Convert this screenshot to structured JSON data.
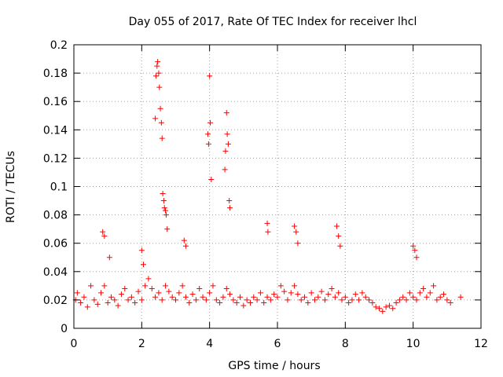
{
  "chart_data": {
    "type": "scatter",
    "title": "Day 055 of 2017, Rate Of TEC Index for receiver lhcl",
    "xlabel": "GPS time / hours",
    "ylabel": "ROTI / TECUs",
    "xlim": [
      0,
      12
    ],
    "ylim": [
      0,
      0.2
    ],
    "xticks": [
      0,
      2,
      4,
      6,
      8,
      10,
      12
    ],
    "yticks": [
      0,
      0.02,
      0.04,
      0.06,
      0.08,
      0.1,
      0.12,
      0.14,
      0.16,
      0.18,
      0.2
    ],
    "xtick_labels": [
      "0",
      "2",
      "4",
      "6",
      "8",
      "10",
      "12"
    ],
    "ytick_labels": [
      "0",
      "0.02",
      "0.04",
      "0.06",
      "0.08",
      "0.1",
      "0.12",
      "0.14",
      "0.16",
      "0.18",
      "0.2"
    ],
    "grid": true,
    "marker": "+",
    "marker_color": "#ff0000",
    "series": [
      {
        "name": "ROTI",
        "x": [
          0.05,
          0.1,
          0.2,
          0.3,
          0.4,
          0.5,
          0.6,
          0.7,
          0.8,
          0.9,
          1.0,
          1.1,
          1.2,
          1.3,
          1.4,
          1.5,
          1.6,
          1.7,
          1.8,
          1.9,
          2.0,
          2.1,
          2.2,
          2.3,
          2.4,
          2.5,
          2.6,
          2.7,
          2.8,
          2.9,
          3.0,
          3.1,
          3.2,
          3.3,
          3.4,
          3.5,
          3.6,
          3.7,
          3.8,
          3.9,
          4.0,
          4.1,
          4.2,
          4.3,
          4.4,
          4.5,
          4.6,
          4.7,
          4.8,
          4.9,
          5.0,
          5.1,
          5.2,
          5.3,
          5.4,
          5.5,
          5.6,
          5.7,
          5.8,
          5.9,
          6.0,
          6.1,
          6.2,
          6.3,
          6.4,
          6.5,
          6.6,
          6.7,
          6.8,
          6.9,
          7.0,
          7.1,
          7.2,
          7.3,
          7.4,
          7.5,
          7.6,
          7.7,
          7.8,
          7.9,
          8.0,
          8.1,
          8.2,
          8.3,
          8.4,
          8.5,
          8.6,
          8.7,
          8.8,
          8.9,
          9.0,
          9.1,
          9.2,
          9.3,
          9.4,
          9.5,
          9.6,
          9.7,
          9.8,
          9.9,
          10.0,
          10.1,
          10.2,
          10.3,
          10.4,
          10.5,
          10.6,
          10.7,
          10.8,
          10.9,
          11.0,
          11.1,
          11.4,
          0.85,
          0.9,
          1.05,
          2.0,
          2.05,
          2.4,
          2.42,
          2.45,
          2.47,
          2.5,
          2.52,
          2.55,
          2.58,
          2.6,
          2.62,
          2.65,
          2.67,
          2.7,
          2.72,
          2.75,
          3.25,
          3.3,
          3.95,
          3.97,
          4.0,
          4.02,
          4.05,
          4.45,
          4.47,
          4.5,
          4.52,
          4.55,
          4.58,
          4.6,
          5.7,
          5.72,
          6.5,
          6.55,
          6.6,
          7.75,
          7.8,
          7.85,
          10.0,
          10.05,
          10.1
        ],
        "y": [
          0.02,
          0.025,
          0.018,
          0.022,
          0.015,
          0.03,
          0.02,
          0.017,
          0.025,
          0.03,
          0.018,
          0.022,
          0.02,
          0.016,
          0.024,
          0.028,
          0.02,
          0.022,
          0.018,
          0.026,
          0.02,
          0.03,
          0.035,
          0.028,
          0.022,
          0.025,
          0.02,
          0.03,
          0.026,
          0.022,
          0.02,
          0.025,
          0.03,
          0.022,
          0.018,
          0.024,
          0.02,
          0.028,
          0.022,
          0.02,
          0.025,
          0.03,
          0.02,
          0.018,
          0.022,
          0.028,
          0.024,
          0.02,
          0.018,
          0.022,
          0.016,
          0.02,
          0.018,
          0.022,
          0.02,
          0.025,
          0.018,
          0.022,
          0.02,
          0.024,
          0.022,
          0.03,
          0.026,
          0.02,
          0.025,
          0.03,
          0.024,
          0.02,
          0.022,
          0.018,
          0.025,
          0.02,
          0.022,
          0.026,
          0.02,
          0.024,
          0.028,
          0.022,
          0.025,
          0.02,
          0.022,
          0.018,
          0.02,
          0.024,
          0.02,
          0.025,
          0.022,
          0.02,
          0.018,
          0.015,
          0.014,
          0.012,
          0.015,
          0.016,
          0.014,
          0.018,
          0.02,
          0.022,
          0.02,
          0.025,
          0.022,
          0.02,
          0.025,
          0.028,
          0.022,
          0.025,
          0.03,
          0.02,
          0.022,
          0.024,
          0.02,
          0.018,
          0.022,
          0.068,
          0.065,
          0.05,
          0.055,
          0.045,
          0.148,
          0.178,
          0.185,
          0.188,
          0.18,
          0.17,
          0.155,
          0.145,
          0.134,
          0.095,
          0.09,
          0.085,
          0.083,
          0.08,
          0.07,
          0.062,
          0.058,
          0.137,
          0.13,
          0.178,
          0.145,
          0.105,
          0.112,
          0.125,
          0.152,
          0.137,
          0.13,
          0.09,
          0.085,
          0.074,
          0.068,
          0.072,
          0.068,
          0.06,
          0.072,
          0.065,
          0.058,
          0.058,
          0.055,
          0.05
        ]
      }
    ]
  }
}
